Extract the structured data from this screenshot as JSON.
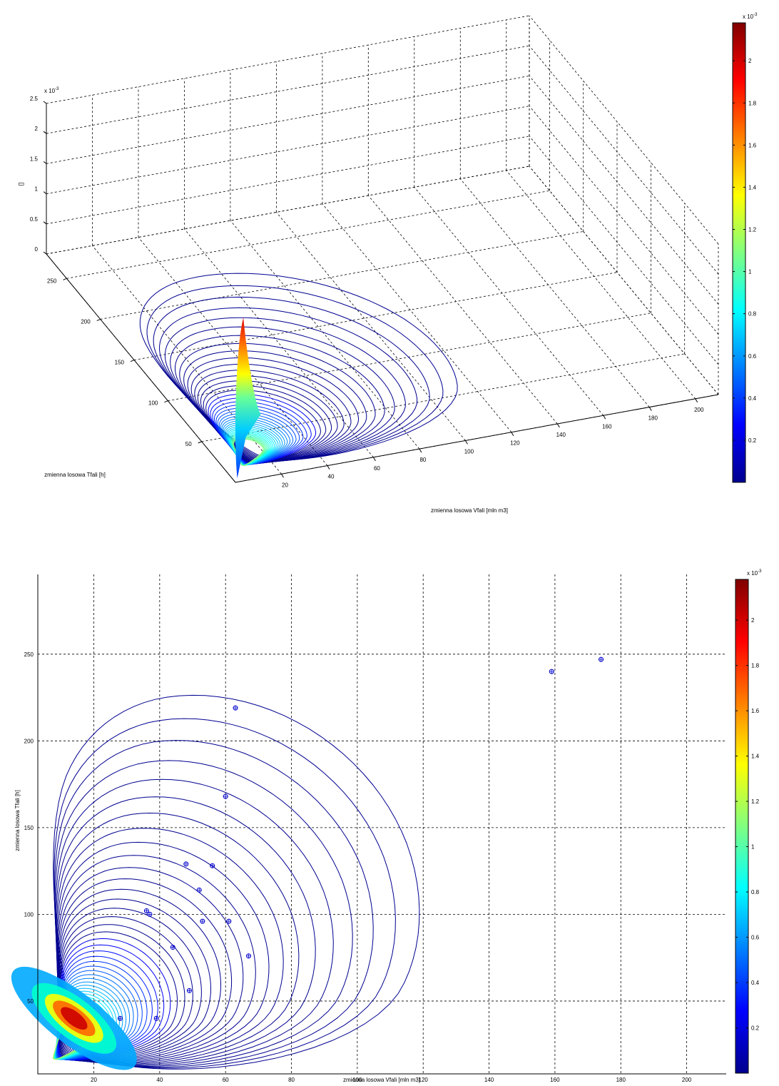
{
  "chart_data": [
    {
      "type": "surface3d",
      "title": "",
      "xlabel": "zmienna losowa Vfali [mln m3]",
      "ylabel": "zmienna losowa Tfali [h]",
      "zlabel": "[]",
      "z_exponent_label": "x 10",
      "z_exponent_power": "-3",
      "xticks": [
        "20",
        "40",
        "60",
        "80",
        "100",
        "120",
        "140",
        "160",
        "180",
        "200"
      ],
      "yticks": [
        "50",
        "100",
        "150",
        "200",
        "250"
      ],
      "zticks": [
        "0",
        "0.5",
        "1",
        "1.5",
        "2",
        "2.5"
      ],
      "xlim": [
        0,
        210
      ],
      "ylim": [
        0,
        280
      ],
      "zlim": [
        0,
        2.5
      ],
      "peak": {
        "x": 14,
        "y": 36,
        "z": 2.15
      },
      "colorbar": {
        "ticks": [
          "0.2",
          "0.4",
          "0.6",
          "0.8",
          "1",
          "1.2",
          "1.4",
          "1.6",
          "1.8",
          "2"
        ],
        "range": [
          0,
          2.18
        ],
        "exponent_label": "x 10",
        "exponent_power": "-3"
      }
    },
    {
      "type": "contour",
      "title": "",
      "xlabel": "zmienna losowa Vfali [mln m3]",
      "ylabel": "zmienna losowa Tfali [h]",
      "xticks": [
        "20",
        "40",
        "60",
        "80",
        "100",
        "120",
        "140",
        "160",
        "180",
        "200"
      ],
      "yticks": [
        "50",
        "100",
        "150",
        "200",
        "250"
      ],
      "xlim": [
        3,
        212
      ],
      "ylim": [
        8,
        296
      ],
      "grid": true,
      "points": [
        {
          "x": 63,
          "y": 219
        },
        {
          "x": 60,
          "y": 168
        },
        {
          "x": 48,
          "y": 129
        },
        {
          "x": 56,
          "y": 128
        },
        {
          "x": 52,
          "y": 114
        },
        {
          "x": 53,
          "y": 96
        },
        {
          "x": 61,
          "y": 96
        },
        {
          "x": 67,
          "y": 76
        },
        {
          "x": 44,
          "y": 81
        },
        {
          "x": 36,
          "y": 102
        },
        {
          "x": 37,
          "y": 100
        },
        {
          "x": 49,
          "y": 56
        },
        {
          "x": 28,
          "y": 40
        },
        {
          "x": 39,
          "y": 40
        },
        {
          "x": 159,
          "y": 240
        },
        {
          "x": 174,
          "y": 247
        }
      ],
      "colorbar": {
        "ticks": [
          "0.2",
          "0.4",
          "0.6",
          "0.8",
          "1",
          "1.2",
          "1.4",
          "1.6",
          "1.8",
          "2"
        ],
        "range": [
          0,
          2.18
        ],
        "exponent_label": "x 10",
        "exponent_power": "-3"
      }
    }
  ]
}
